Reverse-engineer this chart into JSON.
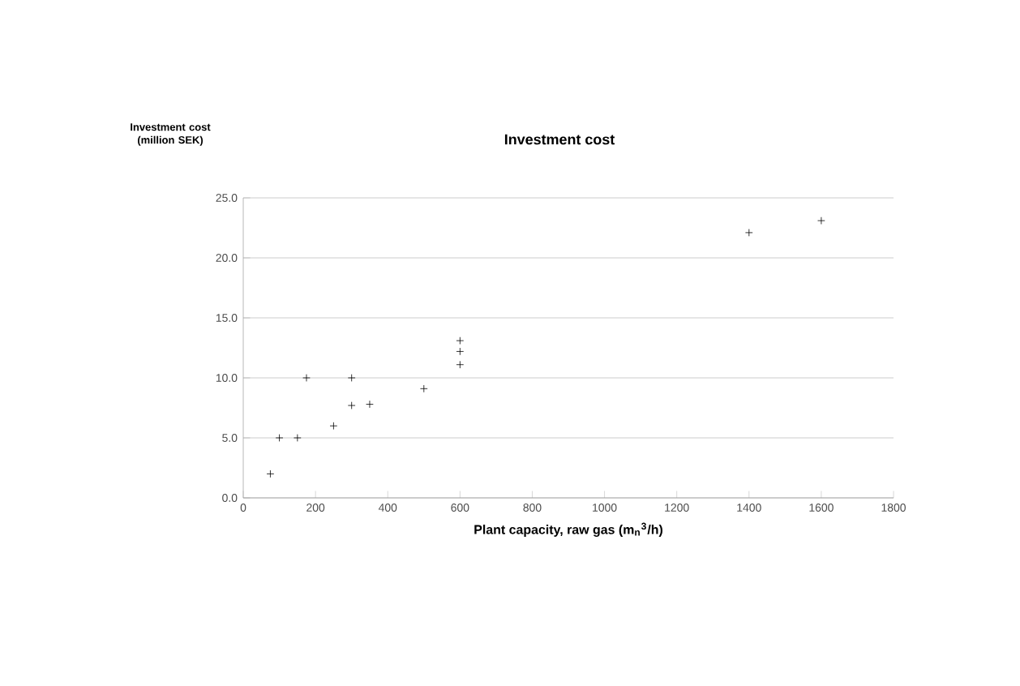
{
  "chart_data": {
    "type": "scatter",
    "title": "Investment cost",
    "ylabel": "Investment cost (million SEK)",
    "xlabel": "Plant capacity, raw gas (m$_{n}$$^{3}$/h)",
    "x": [
      75,
      100,
      150,
      175,
      250,
      300,
      300,
      350,
      500,
      600,
      600,
      600,
      1400,
      1600
    ],
    "values": [
      2,
      5,
      5,
      10,
      6,
      10,
      7.7,
      7.8,
      9.1,
      13.1,
      12.2,
      11.1,
      22.1,
      23.1
    ],
    "color": "#000000",
    "marker": "cross",
    "grid": "y",
    "xlim": [
      0,
      1800
    ],
    "xticks": [
      0,
      200,
      400,
      600,
      800,
      1000,
      1200,
      1400,
      1600,
      1800
    ],
    "ylim": [
      0,
      25
    ],
    "yticks": [
      {
        "value": 0,
        "label": "0.0"
      },
      {
        "value": 5,
        "label": "5.0"
      },
      {
        "value": 10,
        "label": "10.0"
      },
      {
        "value": 15,
        "label": "15.0"
      },
      {
        "value": 20,
        "label": "20.0"
      },
      {
        "value": 25,
        "label": "25.0"
      }
    ]
  }
}
